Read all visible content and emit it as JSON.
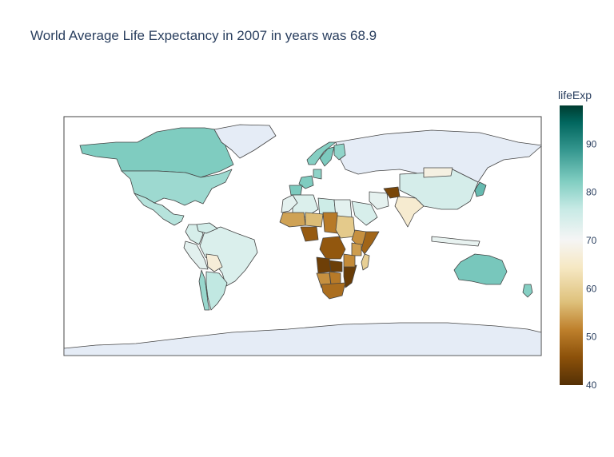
{
  "chart_data": {
    "type": "choropleth",
    "title": "World Average Life Expectancy in 2007 in years was 68.9",
    "colorbar": {
      "title": "lifeExp",
      "range": [
        40,
        98
      ],
      "ticks": [
        90,
        80,
        70,
        60,
        50,
        40
      ],
      "colorscale": [
        "#543005",
        "#8c510a",
        "#bf812d",
        "#dfc27d",
        "#f6e8c3",
        "#f5f5f5",
        "#c7eae5",
        "#80cdc1",
        "#35978f",
        "#01665e",
        "#003c30"
      ]
    },
    "no_data_color": "#e5ecf6",
    "countries": [
      {
        "name": "Canada",
        "value": 80.7
      },
      {
        "name": "United States",
        "value": 78.2
      },
      {
        "name": "Mexico",
        "value": 76.2
      },
      {
        "name": "Greenland",
        "value": null
      },
      {
        "name": "Brazil",
        "value": 72.4
      },
      {
        "name": "Argentina",
        "value": 75.3
      },
      {
        "name": "Bolivia",
        "value": 65.6
      },
      {
        "name": "Chile",
        "value": 78.6
      },
      {
        "name": "Colombia",
        "value": 72.9
      },
      {
        "name": "Peru",
        "value": 71.4
      },
      {
        "name": "Venezuela",
        "value": 73.7
      },
      {
        "name": "Russia",
        "value": null
      },
      {
        "name": "China",
        "value": 73.0
      },
      {
        "name": "Mongolia",
        "value": 66.8
      },
      {
        "name": "India",
        "value": 64.7
      },
      {
        "name": "Afghanistan",
        "value": 43.8
      },
      {
        "name": "Iran",
        "value": 71.0
      },
      {
        "name": "Saudi Arabia",
        "value": 72.8
      },
      {
        "name": "Japan",
        "value": 82.6
      },
      {
        "name": "Australia",
        "value": 81.2
      },
      {
        "name": "Norway",
        "value": 80.2
      },
      {
        "name": "Sweden",
        "value": 80.9
      },
      {
        "name": "Finland",
        "value": 79.3
      },
      {
        "name": "France",
        "value": 80.7
      },
      {
        "name": "Spain",
        "value": 80.9
      },
      {
        "name": "Germany",
        "value": 79.4
      },
      {
        "name": "Algeria",
        "value": 72.3
      },
      {
        "name": "Libya",
        "value": 74.0
      },
      {
        "name": "Egypt",
        "value": 71.3
      },
      {
        "name": "Morocco",
        "value": 71.2
      },
      {
        "name": "Mali",
        "value": 54.5
      },
      {
        "name": "Niger",
        "value": 56.9
      },
      {
        "name": "Chad",
        "value": 50.7
      },
      {
        "name": "Sudan",
        "value": 58.6
      },
      {
        "name": "Ethiopia",
        "value": 52.9
      },
      {
        "name": "Somalia",
        "value": 48.2
      },
      {
        "name": "Kenya",
        "value": 54.1
      },
      {
        "name": "Nigeria",
        "value": 46.9
      },
      {
        "name": "Congo, Dem. Rep.",
        "value": 46.5
      },
      {
        "name": "Angola",
        "value": 42.7
      },
      {
        "name": "Zambia",
        "value": 42.4
      },
      {
        "name": "Mozambique",
        "value": 42.1
      },
      {
        "name": "Tanzania",
        "value": 52.5
      },
      {
        "name": "Namibia",
        "value": 52.9
      },
      {
        "name": "Botswana",
        "value": 50.7
      },
      {
        "name": "South Africa",
        "value": 49.3
      },
      {
        "name": "Madagascar",
        "value": 59.4
      },
      {
        "name": "Indonesia",
        "value": 70.7
      },
      {
        "name": "Antarctica",
        "value": null
      },
      {
        "name": "New Zealand",
        "value": 80.2
      }
    ]
  }
}
